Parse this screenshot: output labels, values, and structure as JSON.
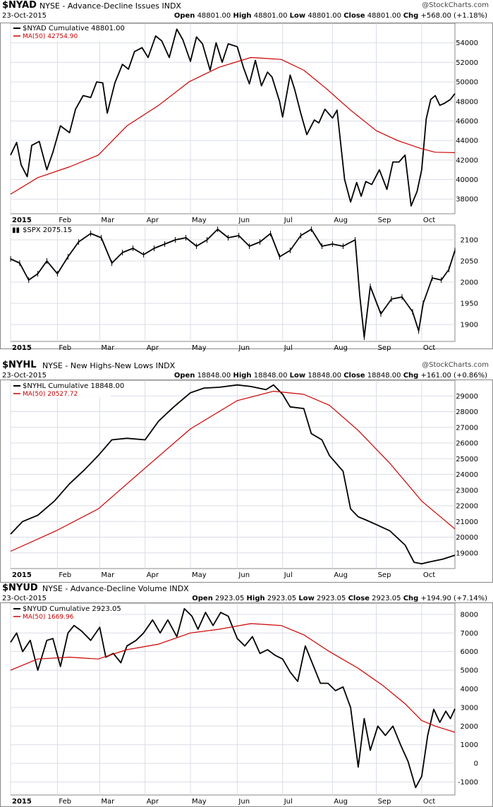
{
  "colors": {
    "line": "#000000",
    "ma": "#cc0000",
    "grid": "#d9dde6",
    "plot_bg": "#ffffff",
    "outer_bg": "#ffffff",
    "border": "#888888"
  },
  "charts": [
    {
      "symbol": "$NYAD",
      "description": "NYSE - Advance-Decline Issues",
      "suffix": "INDX",
      "copyright": "@StockCharts.com",
      "date": "23-Oct-2015",
      "ohlc": {
        "open": "48801.00",
        "high": "48801.00",
        "low": "48801.00",
        "close": "48801.00",
        "chg": "+568.00 (+1.18%)"
      },
      "legend_main": "$NYAD Cumulative 48801.00",
      "legend_ma": "MA(50) 42754.90",
      "legend_spx": "$SPX 2075.15",
      "x_labels": [
        "2015",
        "Feb",
        "Mar",
        "Apr",
        "May",
        "Jun",
        "Jul",
        "Aug",
        "Sep",
        "Oct"
      ]
    },
    {
      "symbol": "$NYHL",
      "description": "NYSE - New Highs-New Lows",
      "suffix": "INDX",
      "copyright": "@StockCharts.com",
      "date": "23-Oct-2015",
      "ohlc": {
        "open": "18848.00",
        "high": "18848.00",
        "low": "18848.00",
        "close": "18848.00",
        "chg": "+161.00 (+0.86%)"
      },
      "legend_main": "$NYHL Cumulative 18848.00",
      "legend_ma": "MA(50) 20527.72",
      "x_labels": [
        "2015",
        "Feb",
        "Mar",
        "Apr",
        "May",
        "Jun",
        "Jul",
        "Aug",
        "Sep",
        "Oct"
      ]
    },
    {
      "symbol": "$NYUD",
      "description": "NYSE - Advance-Decline Volume",
      "suffix": "INDX",
      "copyright": "@StockCharts.com",
      "date": "23-Oct-2015",
      "ohlc": {
        "open": "2923.05",
        "high": "2923.05",
        "low": "2923.05",
        "close": "2923.05",
        "chg": "+194.90 (+7.14%)"
      },
      "legend_main": "$NYUD Cumulative 2923.05",
      "legend_ma": "MA(50) 1669.96",
      "x_labels": [
        "2015",
        "Feb",
        "Mar",
        "Apr",
        "May",
        "Jun",
        "Jul",
        "Aug",
        "Sep",
        "Oct"
      ]
    }
  ],
  "chart_data": [
    {
      "type": "line",
      "title": "$NYAD NYSE - Advance-Decline Issues",
      "x_axis": "date (Jan 2, 2015 - Oct 23, 2015)",
      "ylim": [
        36500,
        56000
      ],
      "yticks": [
        38000,
        40000,
        42000,
        44000,
        46000,
        48000,
        50000,
        52000,
        54000
      ],
      "x_month_labels": [
        "2015",
        "Feb",
        "Mar",
        "Apr",
        "May",
        "Jun",
        "Jul",
        "Aug",
        "Sep",
        "Oct"
      ],
      "grid": true,
      "series": [
        {
          "name": "$NYAD Cumulative",
          "x": [
            "2015-01-02",
            "2015-01-06",
            "2015-01-09",
            "2015-01-13",
            "2015-01-16",
            "2015-01-21",
            "2015-01-26",
            "2015-01-30",
            "2015-02-04",
            "2015-02-10",
            "2015-02-14",
            "2015-02-19",
            "2015-02-24",
            "2015-02-28",
            "2015-03-04",
            "2015-03-07",
            "2015-03-12",
            "2015-03-17",
            "2015-03-21",
            "2015-03-25",
            "2015-03-30",
            "2015-04-03",
            "2015-04-08",
            "2015-04-12",
            "2015-04-17",
            "2015-04-22",
            "2015-04-26",
            "2015-05-01",
            "2015-05-05",
            "2015-05-09",
            "2015-05-14",
            "2015-05-18",
            "2015-05-22",
            "2015-05-26",
            "2015-06-01",
            "2015-06-05",
            "2015-06-09",
            "2015-06-13",
            "2015-06-17",
            "2015-06-21",
            "2015-06-24",
            "2015-06-29",
            "2015-07-01",
            "2015-07-06",
            "2015-07-09",
            "2015-07-13",
            "2015-07-17",
            "2015-07-22",
            "2015-07-25",
            "2015-07-29",
            "2015-08-03",
            "2015-08-06",
            "2015-08-11",
            "2015-08-15",
            "2015-08-19",
            "2015-08-22",
            "2015-08-25",
            "2015-08-29",
            "2015-09-03",
            "2015-09-08",
            "2015-09-12",
            "2015-09-16",
            "2015-09-20",
            "2015-09-24",
            "2015-09-28",
            "2015-10-01",
            "2015-10-04",
            "2015-10-07",
            "2015-10-10",
            "2015-10-13",
            "2015-10-16",
            "2015-10-20",
            "2015-10-23"
          ],
          "values": [
            42500,
            43800,
            41500,
            40300,
            43500,
            43900,
            41000,
            42800,
            45500,
            44800,
            47200,
            48600,
            48400,
            50000,
            49900,
            46800,
            49900,
            51800,
            51300,
            53100,
            53500,
            52500,
            54700,
            54200,
            52500,
            55400,
            54300,
            52100,
            54600,
            53900,
            51200,
            54000,
            52000,
            53900,
            53600,
            51500,
            49800,
            52200,
            49600,
            51000,
            50500,
            48000,
            46400,
            50700,
            49200,
            46800,
            44600,
            46100,
            45800,
            47200,
            46300,
            47100,
            40000,
            37700,
            39700,
            38300,
            39800,
            39500,
            41000,
            39000,
            41800,
            41800,
            42500,
            37300,
            38800,
            41000,
            46200,
            48200,
            48600,
            47600,
            47800,
            48200,
            48801
          ]
        },
        {
          "name": "MA(50)",
          "x": [
            "2015-01-02",
            "2015-01-20",
            "2015-02-10",
            "2015-03-01",
            "2015-03-20",
            "2015-04-10",
            "2015-04-30",
            "2015-05-20",
            "2015-06-10",
            "2015-06-30",
            "2015-07-15",
            "2015-07-30",
            "2015-08-15",
            "2015-09-01",
            "2015-09-15",
            "2015-09-30",
            "2015-10-10",
            "2015-10-23"
          ],
          "values": [
            38500,
            40200,
            41300,
            42500,
            45500,
            47600,
            50000,
            51500,
            52500,
            52300,
            51200,
            49300,
            47100,
            45000,
            44000,
            43200,
            42800,
            42755
          ]
        }
      ]
    },
    {
      "type": "line",
      "title": "$SPX",
      "ylim": [
        1860,
        2135
      ],
      "yticks": [
        1900,
        1950,
        2000,
        2050,
        2100
      ],
      "x_month_labels": [
        "2015",
        "Feb",
        "Mar",
        "Apr",
        "May",
        "Jun",
        "Jul",
        "Aug",
        "Sep",
        "Oct"
      ],
      "grid": true,
      "series": [
        {
          "name": "$SPX",
          "x": [
            "2015-01-02",
            "2015-01-08",
            "2015-01-14",
            "2015-01-20",
            "2015-01-26",
            "2015-02-02",
            "2015-02-09",
            "2015-02-16",
            "2015-02-24",
            "2015-03-03",
            "2015-03-10",
            "2015-03-17",
            "2015-03-24",
            "2015-03-31",
            "2015-04-07",
            "2015-04-14",
            "2015-04-21",
            "2015-04-28",
            "2015-05-05",
            "2015-05-12",
            "2015-05-19",
            "2015-05-26",
            "2015-06-02",
            "2015-06-09",
            "2015-06-16",
            "2015-06-23",
            "2015-06-29",
            "2015-07-06",
            "2015-07-13",
            "2015-07-20",
            "2015-07-27",
            "2015-08-03",
            "2015-08-10",
            "2015-08-18",
            "2015-08-21",
            "2015-08-24",
            "2015-08-28",
            "2015-09-04",
            "2015-09-11",
            "2015-09-18",
            "2015-09-25",
            "2015-09-29",
            "2015-10-02",
            "2015-10-08",
            "2015-10-14",
            "2015-10-19",
            "2015-10-23"
          ],
          "values": [
            2055,
            2045,
            2005,
            2020,
            2050,
            2020,
            2060,
            2095,
            2115,
            2105,
            2045,
            2070,
            2080,
            2065,
            2080,
            2090,
            2100,
            2105,
            2085,
            2100,
            2125,
            2105,
            2110,
            2085,
            2095,
            2115,
            2060,
            2075,
            2110,
            2125,
            2085,
            2090,
            2085,
            2100,
            1970,
            1870,
            1990,
            1925,
            1960,
            1965,
            1930,
            1885,
            1950,
            2010,
            2005,
            2030,
            2075
          ]
        }
      ]
    },
    {
      "type": "line",
      "title": "$NYHL NYSE - New Highs-New Lows",
      "ylim": [
        18000,
        30000
      ],
      "yticks": [
        19000,
        20000,
        21000,
        22000,
        23000,
        24000,
        25000,
        26000,
        27000,
        28000,
        29000
      ],
      "x_month_labels": [
        "2015",
        "Feb",
        "Mar",
        "Apr",
        "May",
        "Jun",
        "Jul",
        "Aug",
        "Sep",
        "Oct"
      ],
      "grid": true,
      "series": [
        {
          "name": "$NYHL Cumulative",
          "x": [
            "2015-01-02",
            "2015-01-10",
            "2015-01-20",
            "2015-01-31",
            "2015-02-10",
            "2015-02-20",
            "2015-03-01",
            "2015-03-10",
            "2015-03-20",
            "2015-04-01",
            "2015-04-10",
            "2015-04-20",
            "2015-05-01",
            "2015-05-10",
            "2015-05-20",
            "2015-06-01",
            "2015-06-10",
            "2015-06-20",
            "2015-06-25",
            "2015-07-01",
            "2015-07-06",
            "2015-07-15",
            "2015-07-20",
            "2015-07-27",
            "2015-08-01",
            "2015-08-10",
            "2015-08-15",
            "2015-08-20",
            "2015-08-25",
            "2015-09-01",
            "2015-09-10",
            "2015-09-20",
            "2015-09-26",
            "2015-10-01",
            "2015-10-05",
            "2015-10-10",
            "2015-10-15",
            "2015-10-23"
          ],
          "values": [
            20200,
            21000,
            21400,
            22300,
            23400,
            24300,
            25200,
            26200,
            26300,
            26200,
            27400,
            28300,
            29200,
            29500,
            29550,
            29700,
            29600,
            29400,
            29700,
            29100,
            28300,
            28200,
            26600,
            26200,
            25200,
            24200,
            21800,
            21300,
            21100,
            20800,
            20400,
            19500,
            18400,
            18300,
            18400,
            18500,
            18600,
            18848
          ]
        },
        {
          "name": "MA(50)",
          "x": [
            "2015-01-02",
            "2015-02-01",
            "2015-03-01",
            "2015-04-01",
            "2015-05-01",
            "2015-06-01",
            "2015-06-25",
            "2015-07-15",
            "2015-08-01",
            "2015-08-20",
            "2015-09-10",
            "2015-10-01",
            "2015-10-23"
          ],
          "values": [
            19100,
            20400,
            21800,
            24400,
            26900,
            28700,
            29300,
            29100,
            28400,
            26800,
            24700,
            22300,
            20528
          ]
        }
      ]
    },
    {
      "type": "line",
      "title": "$NYUD NYSE - Advance-Decline Volume",
      "ylim": [
        -1700,
        8600
      ],
      "yticks": [
        -1000,
        0,
        1000,
        2000,
        3000,
        4000,
        5000,
        6000,
        7000,
        8000
      ],
      "x_month_labels": [
        "2015",
        "Feb",
        "Mar",
        "Apr",
        "May",
        "Jun",
        "Jul",
        "Aug",
        "Sep",
        "Oct"
      ],
      "grid": true,
      "series": [
        {
          "name": "$NYUD Cumulative",
          "x": [
            "2015-01-02",
            "2015-01-06",
            "2015-01-10",
            "2015-01-15",
            "2015-01-20",
            "2015-01-26",
            "2015-01-30",
            "2015-02-04",
            "2015-02-09",
            "2015-02-13",
            "2015-02-18",
            "2015-02-24",
            "2015-03-02",
            "2015-03-06",
            "2015-03-11",
            "2015-03-16",
            "2015-03-20",
            "2015-03-26",
            "2015-03-31",
            "2015-04-06",
            "2015-04-11",
            "2015-04-16",
            "2015-04-22",
            "2015-04-27",
            "2015-05-02",
            "2015-05-06",
            "2015-05-11",
            "2015-05-16",
            "2015-05-21",
            "2015-05-26",
            "2015-06-01",
            "2015-06-06",
            "2015-06-11",
            "2015-06-16",
            "2015-06-21",
            "2015-06-26",
            "2015-07-01",
            "2015-07-06",
            "2015-07-11",
            "2015-07-16",
            "2015-07-21",
            "2015-07-26",
            "2015-07-31",
            "2015-08-05",
            "2015-08-10",
            "2015-08-15",
            "2015-08-20",
            "2015-08-24",
            "2015-08-28",
            "2015-09-02",
            "2015-09-07",
            "2015-09-12",
            "2015-09-17",
            "2015-09-22",
            "2015-09-27",
            "2015-10-01",
            "2015-10-05",
            "2015-10-09",
            "2015-10-13",
            "2015-10-17",
            "2015-10-20",
            "2015-10-23"
          ],
          "values": [
            6500,
            7000,
            6000,
            6600,
            5000,
            6600,
            6700,
            5200,
            7000,
            7400,
            7100,
            6600,
            7300,
            5700,
            5900,
            5400,
            6300,
            6600,
            7000,
            7700,
            7000,
            7700,
            6800,
            8300,
            7900,
            7200,
            8100,
            7400,
            8100,
            7900,
            6700,
            6300,
            6800,
            5900,
            6100,
            5800,
            5600,
            4900,
            4400,
            6300,
            5300,
            4300,
            4300,
            3900,
            4100,
            3000,
            -200,
            2400,
            700,
            2000,
            1500,
            2000,
            1000,
            100,
            -1300,
            -700,
            1500,
            2900,
            2200,
            2800,
            2400,
            2923
          ]
        },
        {
          "name": "MA(50)",
          "x": [
            "2015-01-02",
            "2015-01-20",
            "2015-02-10",
            "2015-03-01",
            "2015-03-20",
            "2015-04-10",
            "2015-05-01",
            "2015-05-20",
            "2015-06-10",
            "2015-06-30",
            "2015-07-15",
            "2015-08-01",
            "2015-08-20",
            "2015-09-05",
            "2015-09-20",
            "2015-10-01",
            "2015-10-10",
            "2015-10-23"
          ],
          "values": [
            5000,
            5600,
            5700,
            5600,
            6100,
            6400,
            7000,
            7200,
            7500,
            7400,
            6900,
            6000,
            5100,
            4200,
            3200,
            2300,
            2000,
            1670
          ]
        }
      ]
    }
  ]
}
